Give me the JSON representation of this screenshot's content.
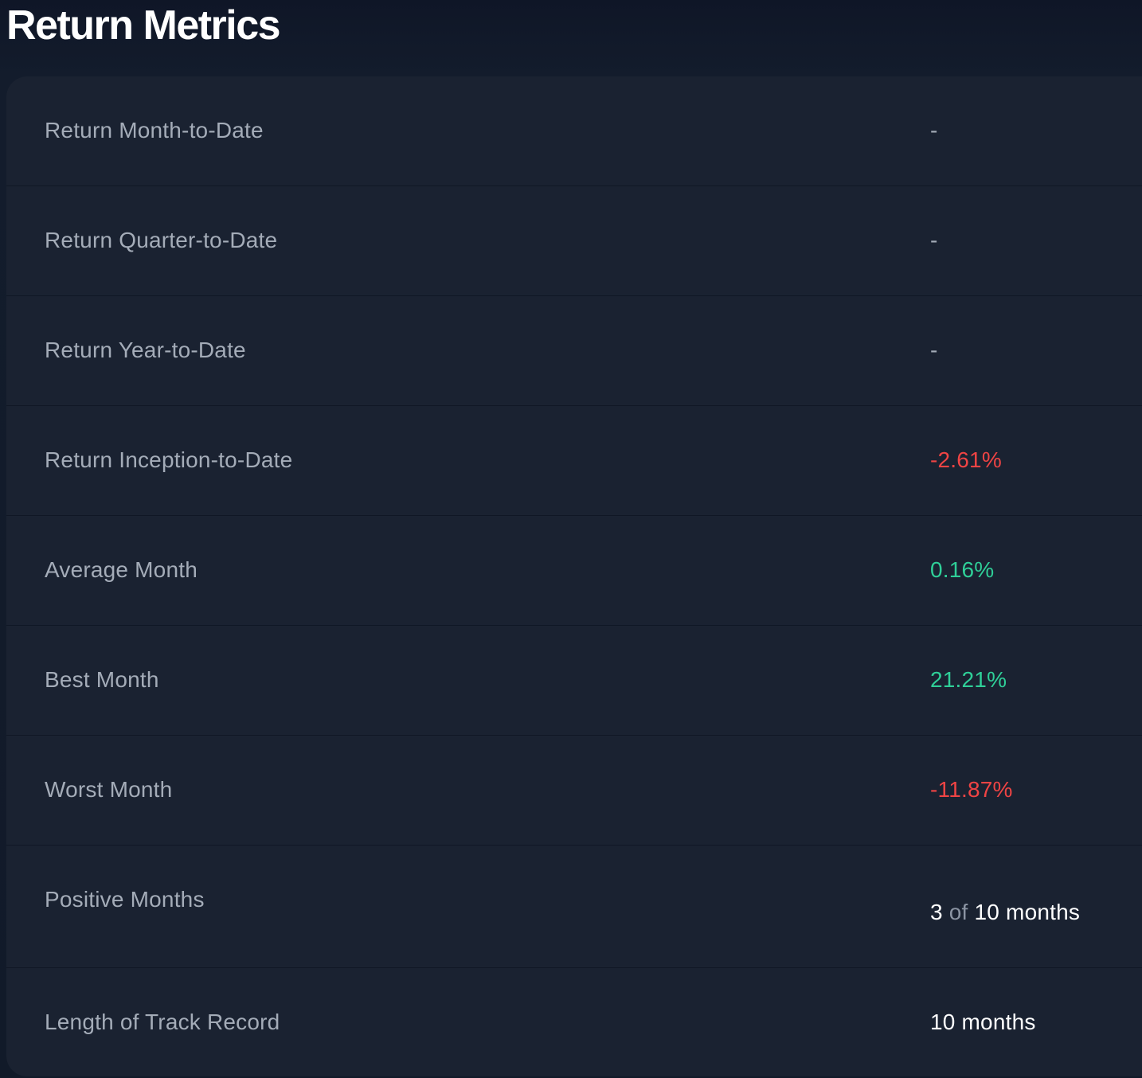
{
  "header": {
    "title": "Return Metrics"
  },
  "colors": {
    "background": "#0f1727",
    "card": "#1a2231",
    "label": "#a4acb8",
    "negative": "#ef4444",
    "positive": "#2fcf98",
    "plain": "#ffffff"
  },
  "metrics": [
    {
      "label": "Return Month-to-Date",
      "value": "-"
    },
    {
      "label": "Return Quarter-to-Date",
      "value": "-"
    },
    {
      "label": "Return Year-to-Date",
      "value": "-"
    },
    {
      "label": "Return Inception-to-Date",
      "value": "-2.61%"
    },
    {
      "label": "Average Month",
      "value": "0.16%"
    },
    {
      "label": "Best Month",
      "value": "21.21%"
    },
    {
      "label": "Worst Month",
      "value": "-11.87%"
    },
    {
      "label": "Positive Months",
      "value_count": "3",
      "value_of": "of",
      "value_total": "10 months"
    },
    {
      "label": "Length of Track Record",
      "value": "10 months"
    }
  ]
}
